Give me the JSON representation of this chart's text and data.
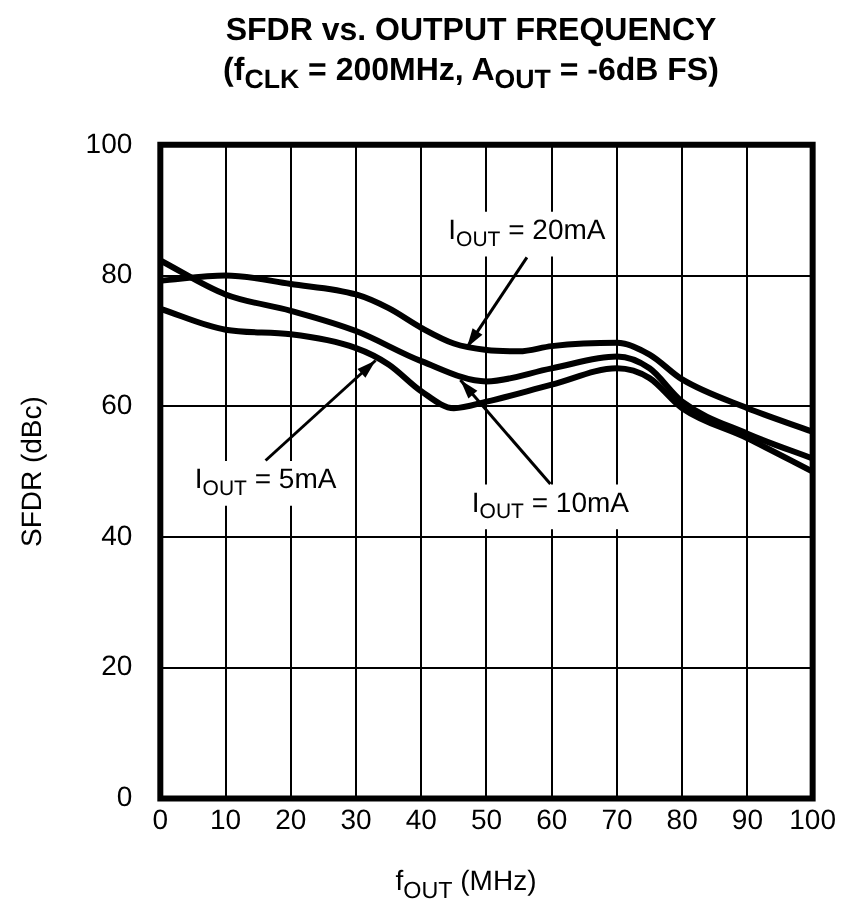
{
  "chart_data": {
    "type": "line",
    "title": "SFDR vs. OUTPUT FREQUENCY",
    "subtitle": "(f$_{CLK}$ = 200MHz, A$_{OUT}$ = -6dB FS)",
    "xlabel": "f$_{OUT}$ (MHz)",
    "ylabel": "SFDR (dBc)",
    "xlim": [
      0,
      100
    ],
    "xticks": [
      0,
      10,
      20,
      30,
      40,
      50,
      60,
      70,
      80,
      90,
      100
    ],
    "ylim": [
      0,
      100
    ],
    "yticks": [
      0,
      20,
      40,
      60,
      80,
      100
    ],
    "grid": true,
    "legend": false,
    "marker": "none",
    "line_style": "solid",
    "series": [
      {
        "color": "#000000",
        "x": [
          0,
          10,
          20,
          30,
          35,
          40,
          45,
          50,
          55,
          60,
          70,
          75,
          80,
          90,
          100
        ],
        "values": [
          79.2,
          80,
          78.7,
          77.1,
          75,
          72,
          69.6,
          68.6,
          68.4,
          69.2,
          69.7,
          67.9,
          64.1,
          59.7,
          56.1
        ]
      },
      {
        "color": "#000000",
        "x": [
          0,
          10,
          20,
          30,
          40,
          50,
          60,
          70,
          75,
          80,
          90,
          100
        ],
        "values": [
          82.3,
          77.1,
          74.6,
          71.5,
          66.9,
          63.8,
          65.8,
          67.6,
          65.8,
          60.7,
          55.8,
          52
        ]
      },
      {
        "color": "#000000",
        "x": [
          0,
          10,
          20,
          30,
          35,
          40,
          45,
          50,
          60,
          70,
          75,
          80,
          90,
          100
        ],
        "values": [
          74.9,
          71.7,
          71,
          68.9,
          66.4,
          62.3,
          59.7,
          60.7,
          63.3,
          65.8,
          64.3,
          59.7,
          55.1,
          50
        ]
      }
    ],
    "annotations": [
      {
        "text": "I$_{OUT}$ = 20mA",
        "x": 47,
        "y": 69
      },
      {
        "text": "I$_{OUT}$ = 5mA",
        "x": 33,
        "y": 67
      },
      {
        "text": "I$_{OUT}$ = 10mA",
        "x": 46,
        "y": 64
      }
    ]
  }
}
